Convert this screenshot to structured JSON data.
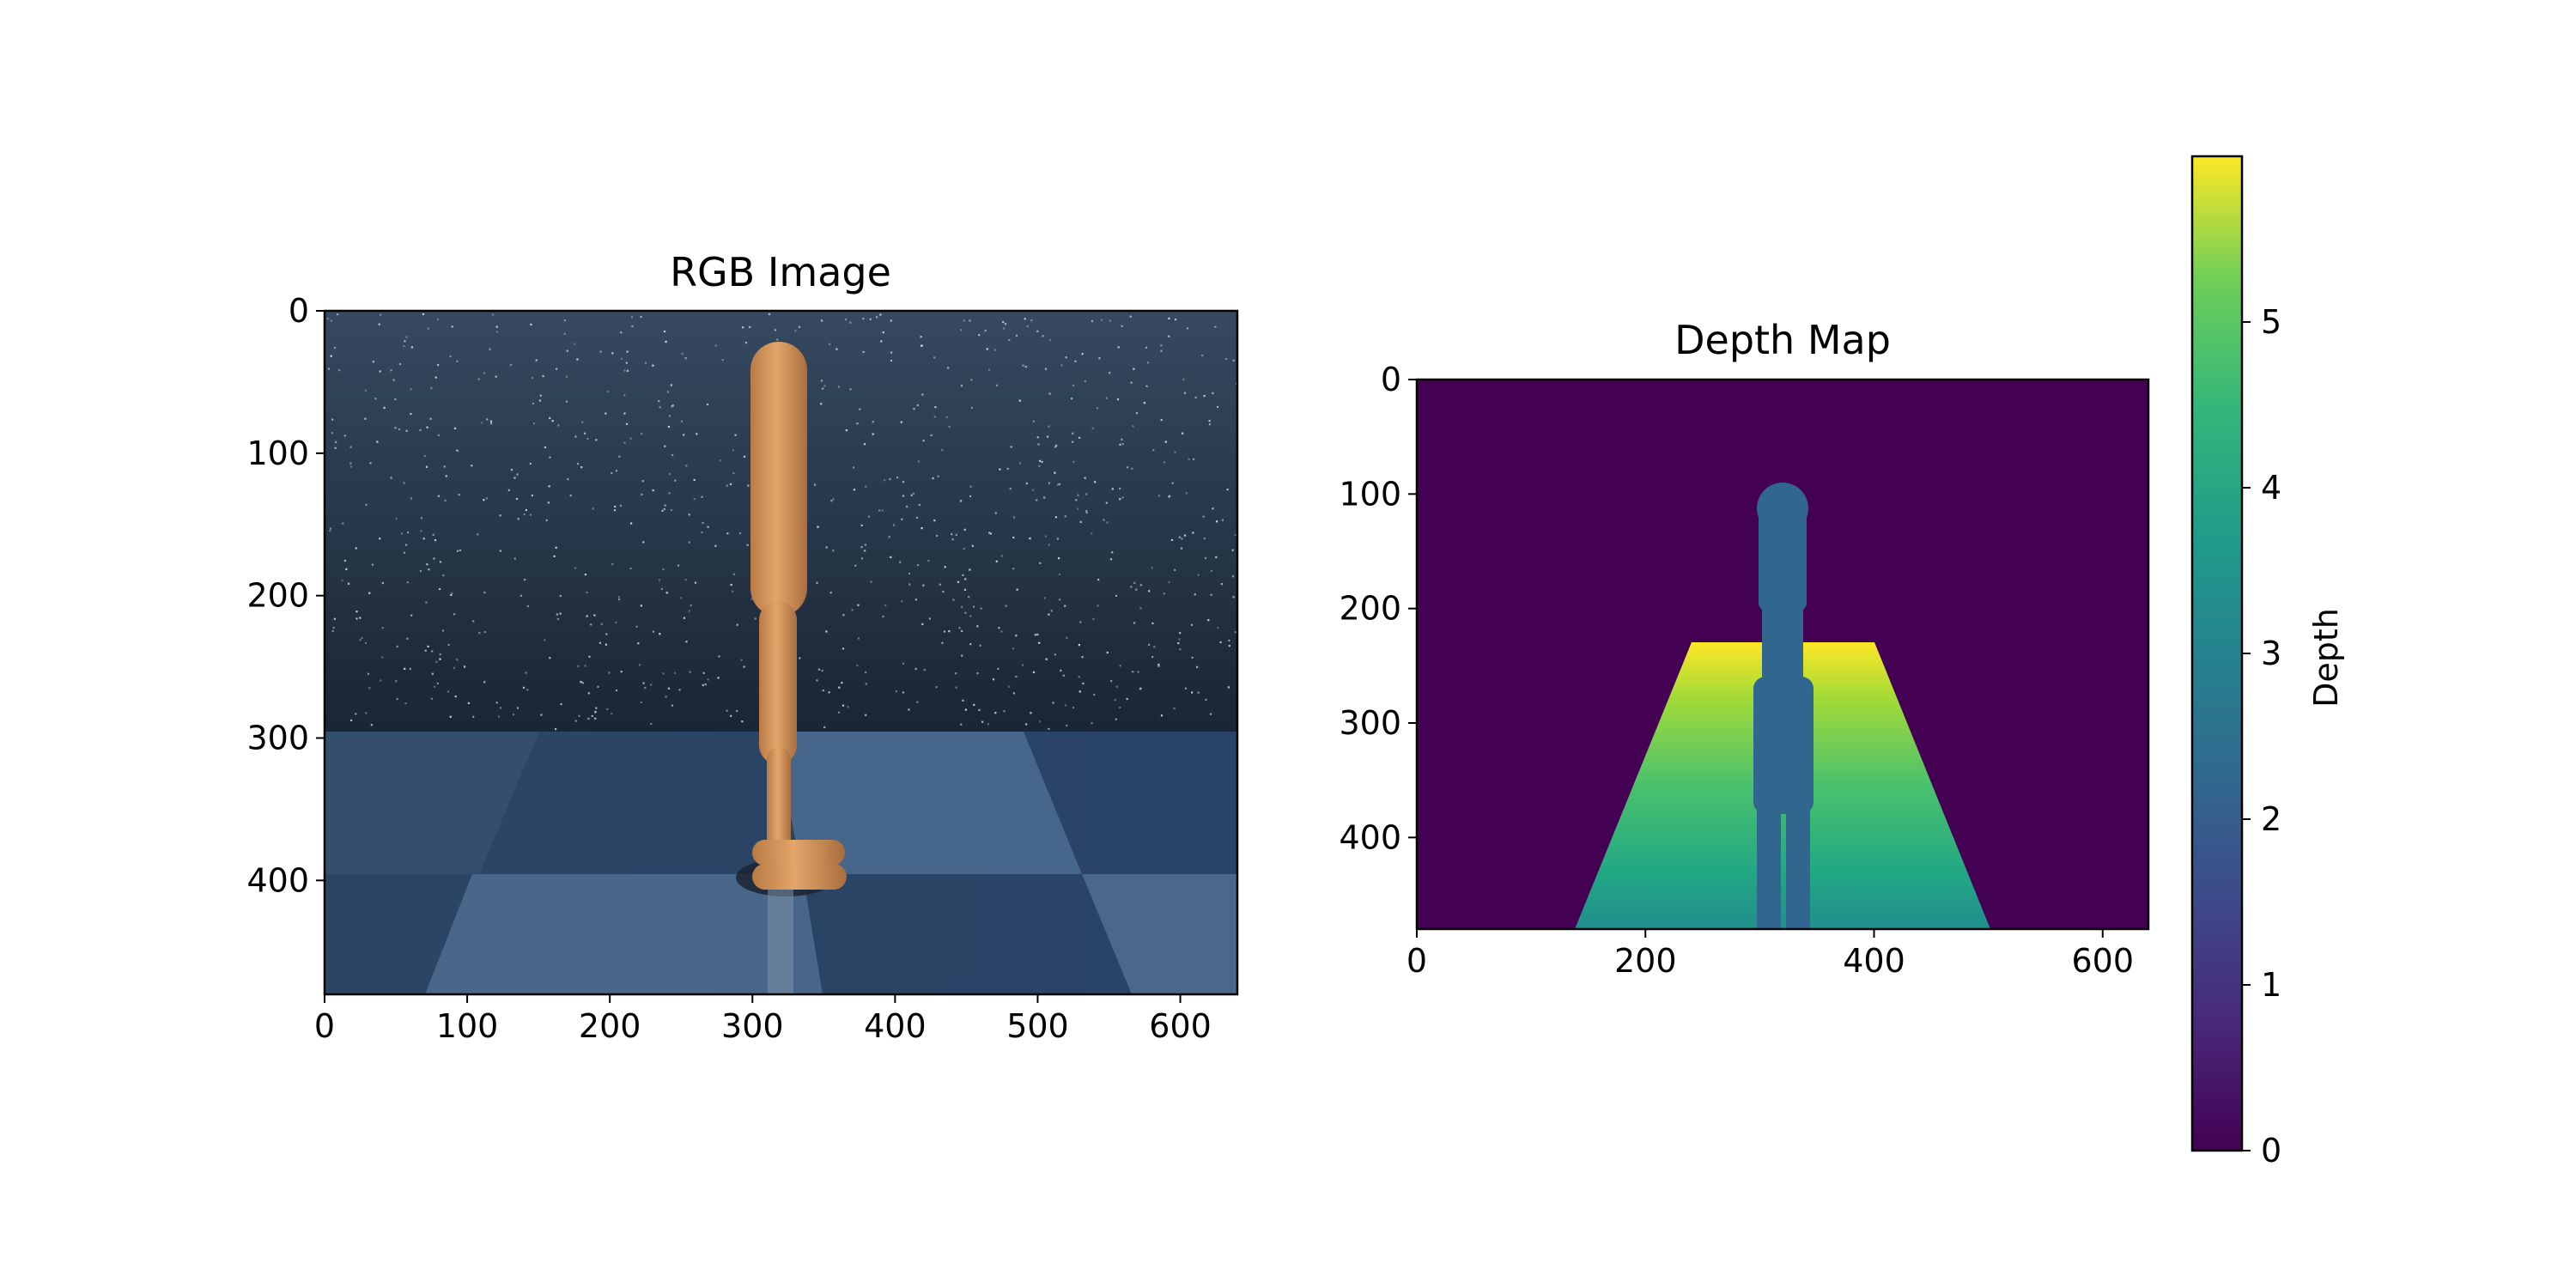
{
  "chart_data": [
    {
      "type": "image",
      "title": "RGB Image",
      "description_kind": "rendered scene",
      "xlim": [
        0,
        640
      ],
      "ylim": [
        480,
        0
      ],
      "xticks": [
        0,
        100,
        200,
        300,
        400,
        500,
        600
      ],
      "yticks": [
        0,
        100,
        200,
        300,
        400
      ],
      "xlabel": "",
      "ylabel": ""
    },
    {
      "type": "heatmap",
      "title": "Depth Map",
      "xlim": [
        0,
        640
      ],
      "ylim": [
        480,
        0
      ],
      "xticks": [
        0,
        200,
        400,
        600
      ],
      "yticks": [
        0,
        100,
        200,
        300,
        400
      ],
      "xlabel": "",
      "ylabel": "",
      "colormap": "viridis",
      "colorbar": {
        "label": "Depth",
        "range": [
          0,
          6
        ],
        "ticks": [
          0,
          1,
          2,
          3,
          4,
          5
        ]
      }
    }
  ]
}
